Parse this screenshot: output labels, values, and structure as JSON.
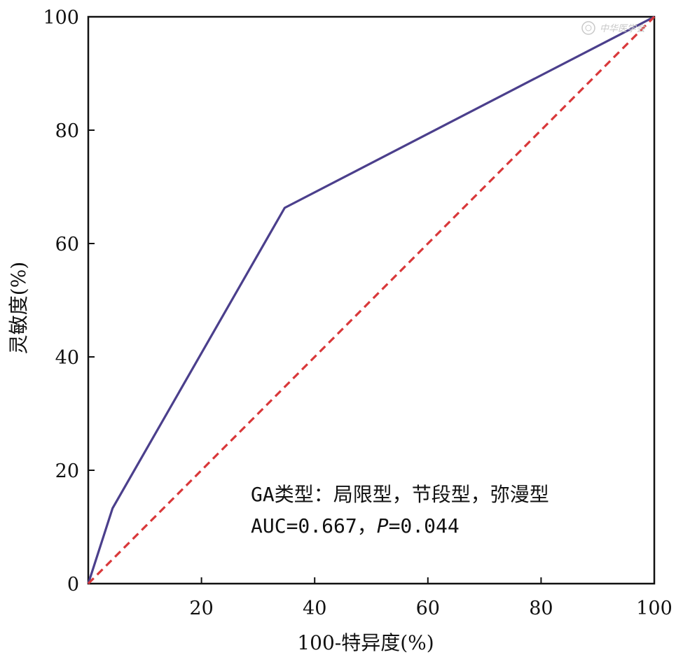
{
  "chart_data": {
    "type": "line",
    "title": "",
    "xlabel": "100-特异度(%)",
    "ylabel": "灵敏度(%)",
    "xlim": [
      0,
      100
    ],
    "ylim": [
      0,
      100
    ],
    "x_ticks": [
      20,
      40,
      60,
      80,
      100
    ],
    "y_ticks": [
      0,
      20,
      40,
      60,
      80,
      100
    ],
    "grid": false,
    "series": [
      {
        "style": "solid",
        "color": "#4b3f8c",
        "points": [
          [
            0,
            0
          ],
          [
            4.3,
            13.3
          ],
          [
            34.7,
            66.3
          ],
          [
            100,
            100
          ]
        ]
      },
      {
        "style": "dashed",
        "color": "#d9383a",
        "points": [
          [
            0,
            0
          ],
          [
            100,
            100
          ]
        ]
      }
    ],
    "annotations": [
      "GA类型：局限型，节段型，弥漫型",
      "AUC=0.667，",
      "P",
      "=0.044"
    ]
  },
  "watermark": {
    "text": "中华医学会"
  }
}
